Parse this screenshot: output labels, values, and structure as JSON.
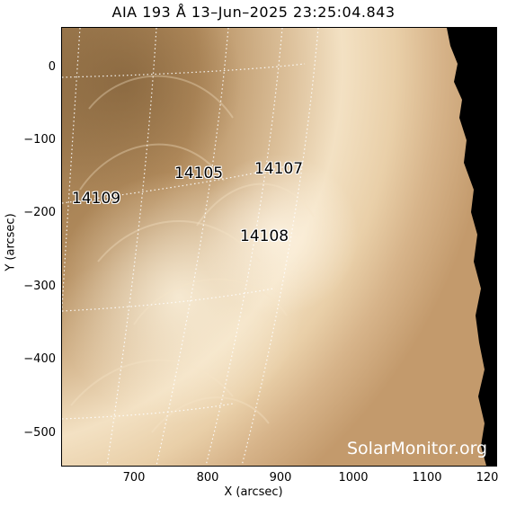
{
  "title": "AIA 193 Å 13–Jun–2025 23:25:04.843",
  "x_axis": {
    "label": "X (arcsec)",
    "ticks": [
      "700",
      "800",
      "900",
      "1000",
      "1100",
      "120"
    ]
  },
  "y_axis": {
    "label": "Y (arcsec)",
    "ticks": [
      "0",
      "−100",
      "−200",
      "−300",
      "−400",
      "−500"
    ]
  },
  "active_regions": [
    {
      "number": "14105"
    },
    {
      "number": "14107"
    },
    {
      "number": "14108"
    },
    {
      "number": "14109"
    }
  ],
  "watermark": "SolarMonitor.org",
  "colors": {
    "disk_bright": "#f4e2c4",
    "disk_mid": "#c9a173",
    "disk_dark": "#8a6a42",
    "space": "#000000",
    "grid": "#ffffff"
  }
}
